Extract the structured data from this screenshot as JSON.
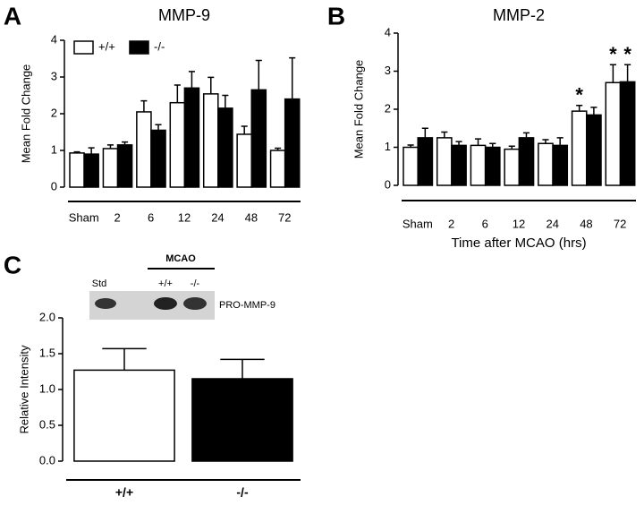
{
  "chart_data": [
    {
      "type": "bar",
      "panel": "A",
      "title": "MMP-9",
      "y_label": "Mean Fold Change",
      "categories": [
        "Sham",
        "2",
        "6",
        "12",
        "24",
        "48",
        "72"
      ],
      "series": [
        {
          "name": "+/+",
          "color": "#ffffff",
          "values": [
            0.93,
            1.05,
            2.05,
            2.3,
            2.54,
            1.44,
            1.0
          ],
          "errors": [
            0.03,
            0.1,
            0.3,
            0.48,
            0.45,
            0.22,
            0.06
          ]
        },
        {
          "name": "-/-",
          "color": "#000000",
          "values": [
            0.9,
            1.15,
            1.55,
            2.7,
            2.15,
            2.65,
            2.4
          ],
          "errors": [
            0.17,
            0.08,
            0.15,
            0.45,
            0.35,
            0.8,
            1.12
          ]
        }
      ],
      "ylim": [
        0,
        4
      ],
      "yticks": [
        0,
        1,
        2,
        3,
        4
      ],
      "legend": "top-left"
    },
    {
      "type": "bar",
      "panel": "B",
      "title": "MMP-2",
      "y_label": "Mean Fold Change",
      "x_label": "Time after MCAO (hrs)",
      "categories": [
        "Sham",
        "2",
        "6",
        "12",
        "24",
        "48",
        "72"
      ],
      "series": [
        {
          "name": "+/+",
          "color": "#ffffff",
          "values": [
            1.0,
            1.25,
            1.05,
            0.95,
            1.1,
            1.95,
            2.7
          ],
          "errors": [
            0.06,
            0.15,
            0.17,
            0.08,
            0.1,
            0.15,
            0.47
          ],
          "annotations": [
            null,
            null,
            null,
            null,
            null,
            "*",
            "*"
          ]
        },
        {
          "name": "-/-",
          "color": "#000000",
          "values": [
            1.25,
            1.05,
            1.0,
            1.25,
            1.05,
            1.85,
            2.72
          ],
          "errors": [
            0.25,
            0.1,
            0.1,
            0.13,
            0.2,
            0.2,
            0.45
          ],
          "annotations": [
            null,
            null,
            null,
            null,
            null,
            null,
            "*"
          ]
        }
      ],
      "ylim": [
        0,
        4
      ],
      "yticks": [
        0,
        1,
        2,
        3,
        4
      ]
    },
    {
      "type": "bar",
      "panel": "C",
      "y_label": "Relative Intensity",
      "categories": [
        "+/+",
        "-/-"
      ],
      "values": [
        1.27,
        1.15
      ],
      "errors": [
        0.3,
        0.27
      ],
      "colors": [
        "#ffffff",
        "#000000"
      ],
      "ylim": [
        0,
        2
      ],
      "yticks": [
        {
          "value": 0,
          "label": "0.0"
        },
        {
          "value": 0.5,
          "label": "0.5"
        },
        {
          "value": 1,
          "label": "1.0"
        },
        {
          "value": 1.5,
          "label": "1.5"
        },
        {
          "value": 2,
          "label": "2.0"
        }
      ],
      "blot_labels": [
        "Std",
        "MCAO",
        "+/+",
        "-/-",
        "PRO-MMP-9"
      ]
    }
  ]
}
